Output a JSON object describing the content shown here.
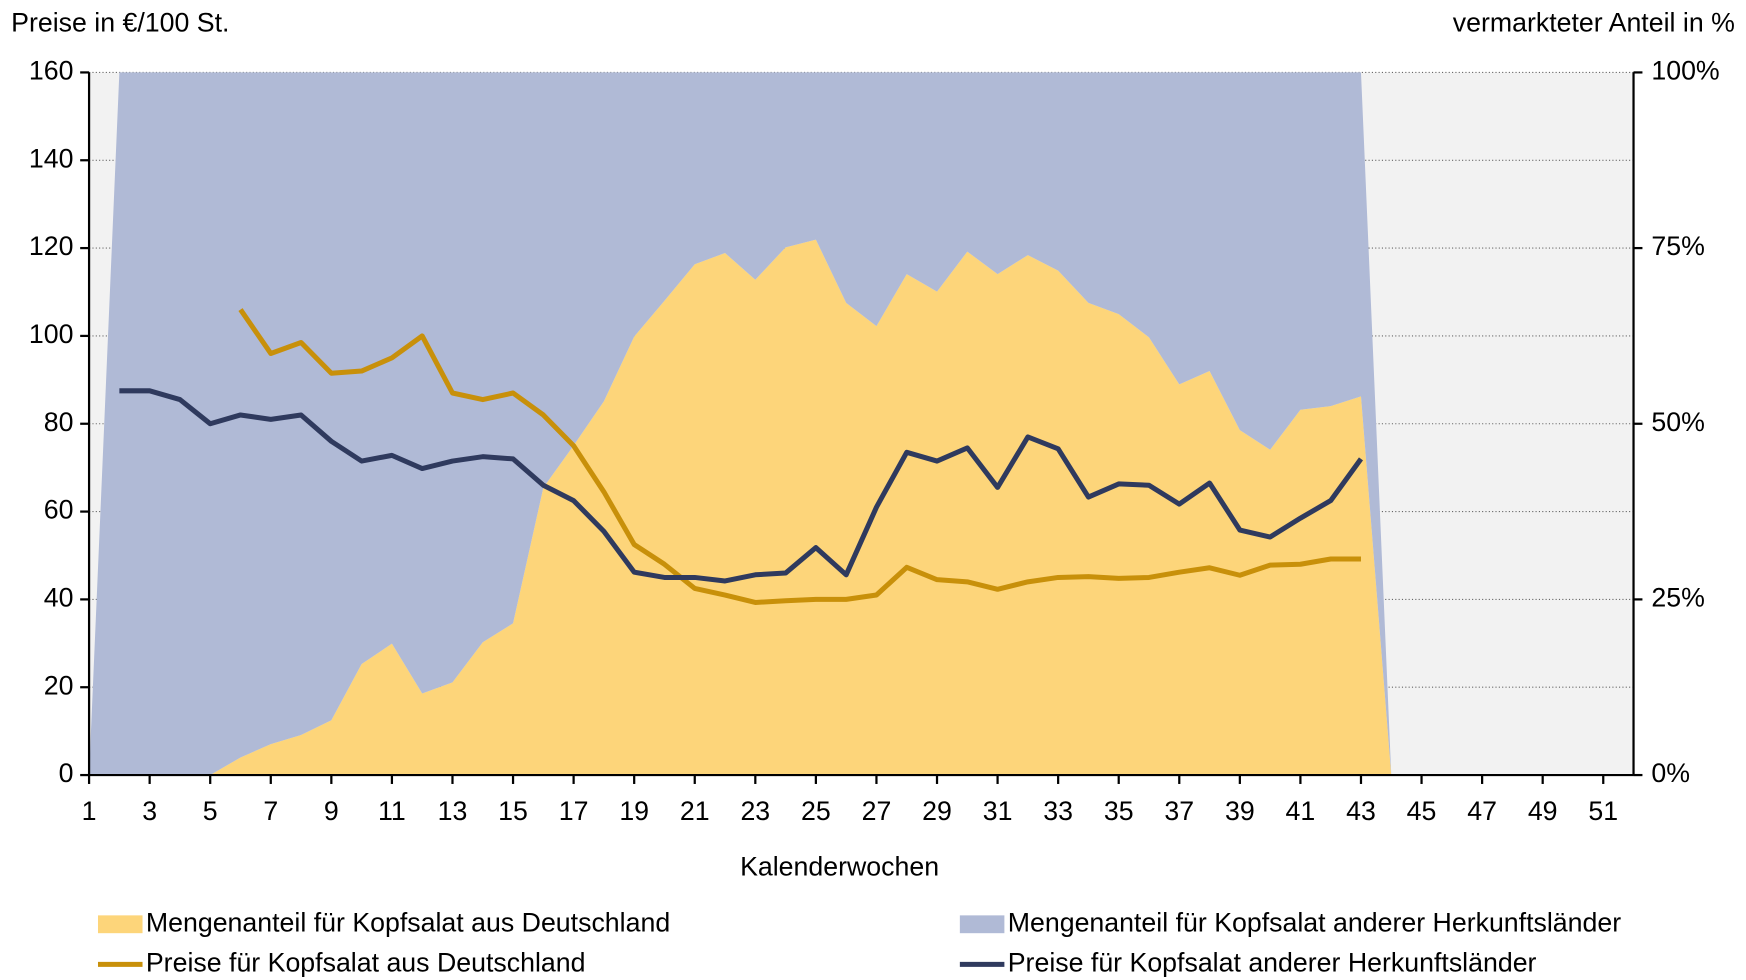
{
  "chart_data": {
    "type": "combo",
    "ylabel": "Preise in €/100 St.",
    "y2label": "vermarkteter Anteil in %",
    "xlabel": "Kalenderwochen",
    "x": [
      1,
      2,
      3,
      4,
      5,
      6,
      7,
      8,
      9,
      10,
      11,
      12,
      13,
      14,
      15,
      16,
      17,
      18,
      19,
      20,
      21,
      22,
      23,
      24,
      25,
      26,
      27,
      28,
      29,
      30,
      31,
      32,
      33,
      34,
      35,
      36,
      37,
      38,
      39,
      40,
      41,
      42,
      43,
      44,
      45,
      46,
      47,
      48,
      49,
      50,
      51,
      52
    ],
    "xlim": [
      1,
      52
    ],
    "xticks": [
      1,
      3,
      5,
      7,
      9,
      11,
      13,
      15,
      17,
      19,
      21,
      23,
      25,
      27,
      29,
      31,
      33,
      35,
      37,
      39,
      41,
      43,
      45,
      47,
      49,
      51
    ],
    "ylim": [
      0,
      160
    ],
    "yticks": [
      0,
      20,
      40,
      60,
      80,
      100,
      120,
      140,
      160
    ],
    "y2lim": [
      0,
      100
    ],
    "y2ticks": [
      {
        "value": 0,
        "label": "0%"
      },
      {
        "value": 25,
        "label": "25%"
      },
      {
        "value": 50,
        "label": "50%"
      },
      {
        "value": 75,
        "label": "75%"
      },
      {
        "value": 100,
        "label": "100%"
      }
    ],
    "grid": true,
    "legend": "bottom",
    "series": [
      {
        "name": "Mengenanteil für Kopfsalat aus Deutschland",
        "type": "area",
        "axis": "y2",
        "color": "#fdd57a",
        "values": [
          0,
          0,
          0,
          0,
          0,
          2.5,
          4.4,
          5.7,
          7.8,
          15.8,
          18.7,
          11.6,
          13.2,
          18.9,
          21.6,
          40.9,
          46.9,
          53.2,
          62.4,
          67.5,
          72.7,
          74.3,
          70.5,
          75.1,
          76.2,
          67.2,
          63.9,
          71.3,
          68.8,
          74.5,
          71.3,
          74.0,
          71.8,
          67.2,
          65.6,
          62.3,
          55.6,
          57.5,
          49.1,
          46.3,
          52.0,
          52.5,
          53.9,
          0,
          null,
          null,
          null,
          null,
          null,
          null,
          null,
          null
        ]
      },
      {
        "name": "Mengenanteil für Kopfsalat anderer Herkunftsländer",
        "type": "area",
        "axis": "y2",
        "color": "#b0bad6",
        "values": [
          0,
          100,
          100,
          100,
          100,
          97.5,
          95.6,
          94.3,
          92.2,
          84.2,
          81.3,
          88.4,
          86.8,
          81.1,
          78.4,
          59.1,
          53.1,
          46.8,
          37.6,
          32.5,
          27.3,
          25.7,
          29.5,
          24.9,
          23.8,
          32.8,
          36.1,
          28.7,
          31.2,
          25.5,
          28.7,
          26.0,
          28.2,
          32.8,
          34.4,
          37.7,
          44.4,
          42.5,
          50.9,
          53.7,
          48.0,
          47.5,
          46.1,
          0,
          null,
          null,
          null,
          null,
          null,
          null,
          null,
          null
        ]
      },
      {
        "name": "Preise für Kopfsalat aus Deutschland",
        "type": "line",
        "color": "#c8900a",
        "values": [
          null,
          null,
          null,
          null,
          null,
          106,
          96,
          98.5,
          91.5,
          92,
          95,
          100,
          87,
          85.5,
          87,
          82,
          75,
          64.5,
          52.5,
          48,
          42.5,
          41,
          39.3,
          39.7,
          40,
          40,
          41,
          47.3,
          44.5,
          44,
          42.3,
          44,
          45,
          45.2,
          44.8,
          45,
          46.2,
          47.2,
          45.5,
          47.8,
          48,
          49.2,
          49.2,
          null,
          null,
          null,
          null,
          null,
          null,
          null,
          null,
          null
        ]
      },
      {
        "name": "Preise für Kopfsalat anderer Herkunftsländer",
        "type": "line",
        "color": "#2f3a5e",
        "values": [
          null,
          87.5,
          87.5,
          85.5,
          80,
          82,
          81,
          82,
          76,
          71.5,
          72.8,
          69.8,
          71.5,
          72.5,
          72,
          66,
          62.5,
          55.5,
          46.2,
          45,
          45,
          44.2,
          45.6,
          46,
          51.8,
          45.6,
          61,
          73.5,
          71.5,
          74.5,
          65.5,
          77,
          74.3,
          63.3,
          66.3,
          66,
          61.7,
          66.5,
          55.8,
          54.2,
          58.5,
          62.5,
          72,
          null,
          null,
          null,
          null,
          null,
          null,
          null,
          null,
          null
        ]
      }
    ]
  }
}
